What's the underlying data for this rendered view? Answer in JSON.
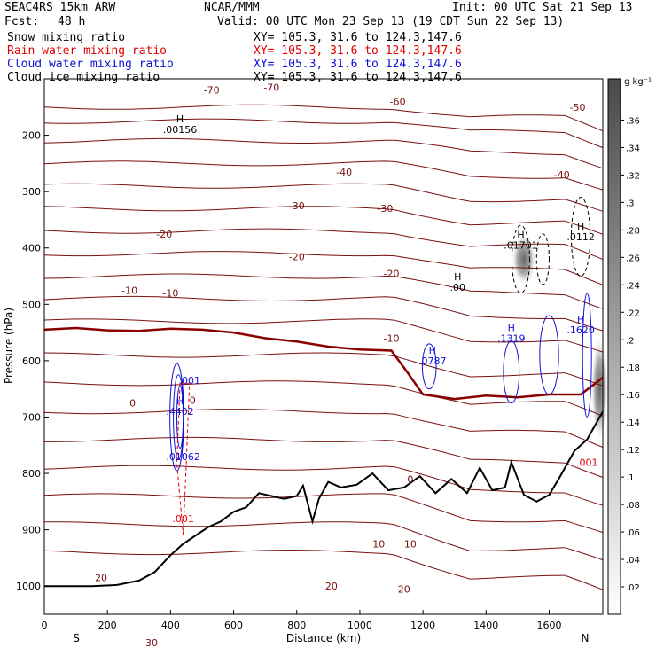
{
  "header": {
    "model": "SEAC4RS 15km ARW",
    "org": "NCAR/MMM",
    "init": "Init: 00 UTC Sat 21 Sep 13",
    "fcst_label": "Fcst:",
    "fcst_value": "48 h",
    "valid": "Valid: 00 UTC Mon 23 Sep 13 (19 CDT Sun 22 Sep 13)"
  },
  "fields": [
    {
      "name": "Snow mixing ratio",
      "xy": "XY= 105.3, 31.6 to 124.3,147.6",
      "color": "#000000"
    },
    {
      "name": "Rain water mixing ratio",
      "xy": "XY= 105.3, 31.6 to 124.3,147.6",
      "color": "#e00000"
    },
    {
      "name": "Cloud water mixing ratio",
      "xy": "XY= 105.3, 31.6 to 124.3,147.6",
      "color": "#1010d8"
    },
    {
      "name": "Cloud ice mixing ratio",
      "xy": "XY= 105.3, 31.6 to 124.3,147.6",
      "color": "#000000"
    }
  ],
  "chart_data": {
    "type": "contour",
    "xlabel": "Distance (km)",
    "ylabel": "Pressure (hPa)",
    "xlim": [
      0,
      1770
    ],
    "ylim": [
      1050,
      100
    ],
    "x_ticks": [
      0,
      200,
      400,
      600,
      800,
      1000,
      1200,
      1400,
      1600
    ],
    "y_ticks": [
      200,
      300,
      400,
      500,
      600,
      700,
      800,
      900,
      1000
    ],
    "x_end_labels": {
      "left": "S",
      "right": "N"
    },
    "colorbar": {
      "unit": "g kg⁻¹",
      "ticks": [
        ".02",
        ".04",
        ".06",
        ".08",
        ".1",
        ".12",
        ".14",
        ".16",
        ".18",
        ".2",
        ".22",
        ".24",
        ".26",
        ".28",
        ".3",
        ".32",
        ".34",
        ".36"
      ]
    },
    "temperature_contour_labels": [
      {
        "text": "-70",
        "x": 530,
        "p": 120
      },
      {
        "text": "-70",
        "x": 720,
        "p": 115
      },
      {
        "text": "-60",
        "x": 1120,
        "p": 140
      },
      {
        "text": "-50",
        "x": 1690,
        "p": 150
      },
      {
        "text": "-40",
        "x": 950,
        "p": 265
      },
      {
        "text": "-40",
        "x": 1640,
        "p": 270
      },
      {
        "text": "-30",
        "x": 800,
        "p": 325
      },
      {
        "text": "-30",
        "x": 1080,
        "p": 330
      },
      {
        "text": "-20",
        "x": 380,
        "p": 375
      },
      {
        "text": "-20",
        "x": 800,
        "p": 415
      },
      {
        "text": "-20",
        "x": 1100,
        "p": 445
      },
      {
        "text": "-10",
        "x": 270,
        "p": 475
      },
      {
        "text": "-10",
        "x": 400,
        "p": 480
      },
      {
        "text": "-10",
        "x": 1100,
        "p": 560
      },
      {
        "text": "0",
        "x": 280,
        "p": 675
      },
      {
        "text": "0",
        "x": 470,
        "p": 670
      },
      {
        "text": "0",
        "x": 1160,
        "p": 810
      },
      {
        "text": "10",
        "x": 1060,
        "p": 925
      },
      {
        "text": "10",
        "x": 1160,
        "p": 925
      },
      {
        "text": "20",
        "x": 180,
        "p": 985
      },
      {
        "text": "20",
        "x": 910,
        "p": 1000
      },
      {
        "text": "20",
        "x": 1140,
        "p": 1005
      },
      {
        "text": "30",
        "x": 340,
        "p": 1100
      }
    ],
    "maxima_labels": [
      {
        "text": "H",
        "value": ".00156",
        "x": 430,
        "p": 190,
        "color": "#000000"
      },
      {
        "text": "H",
        "value": ".01701",
        "x": 1510,
        "p": 395,
        "color": "#000000"
      },
      {
        "text": "H",
        "value": ".0112",
        "x": 1700,
        "p": 380,
        "color": "#000000"
      },
      {
        "text": "H",
        "value": ".00",
        "x": 1310,
        "p": 470,
        "color": "#000000"
      },
      {
        "text": "H",
        "value": ".0787",
        "x": 1230,
        "p": 600,
        "color": "#1010d8"
      },
      {
        "text": "H",
        "value": ".1319",
        "x": 1480,
        "p": 560,
        "color": "#1010d8"
      },
      {
        "text": "H",
        "value": ".1620",
        "x": 1700,
        "p": 545,
        "color": "#1010d8"
      },
      {
        "text": "H",
        "value": ".4402",
        "x": 430,
        "p": 690,
        "color": "#1010d8"
      },
      {
        "text": "",
        "value": ".001",
        "x": 460,
        "p": 635,
        "color": "#1010d8"
      },
      {
        "text": "",
        "value": ".01062",
        "x": 440,
        "p": 770,
        "color": "#1010d8"
      },
      {
        "text": "",
        "value": ".001",
        "x": 440,
        "p": 880,
        "color": "#e00000"
      },
      {
        "text": "",
        "value": ".001",
        "x": 1720,
        "p": 780,
        "color": "#e00000"
      }
    ],
    "terrain": [
      [
        0,
        1000
      ],
      [
        150,
        1000
      ],
      [
        230,
        998
      ],
      [
        300,
        990
      ],
      [
        350,
        975
      ],
      [
        400,
        945
      ],
      [
        440,
        925
      ],
      [
        480,
        910
      ],
      [
        520,
        895
      ],
      [
        560,
        885
      ],
      [
        600,
        868
      ],
      [
        640,
        860
      ],
      [
        680,
        835
      ],
      [
        720,
        840
      ],
      [
        760,
        845
      ],
      [
        800,
        840
      ],
      [
        820,
        822
      ],
      [
        850,
        885
      ],
      [
        870,
        845
      ],
      [
        900,
        815
      ],
      [
        940,
        825
      ],
      [
        990,
        820
      ],
      [
        1040,
        800
      ],
      [
        1090,
        830
      ],
      [
        1140,
        825
      ],
      [
        1190,
        805
      ],
      [
        1240,
        835
      ],
      [
        1290,
        810
      ],
      [
        1340,
        835
      ],
      [
        1380,
        790
      ],
      [
        1420,
        830
      ],
      [
        1460,
        825
      ],
      [
        1480,
        780
      ],
      [
        1520,
        838
      ],
      [
        1560,
        850
      ],
      [
        1600,
        838
      ],
      [
        1630,
        810
      ],
      [
        1650,
        790
      ],
      [
        1680,
        760
      ],
      [
        1720,
        740
      ],
      [
        1770,
        690
      ]
    ],
    "freezing_level": [
      [
        0,
        545
      ],
      [
        100,
        542
      ],
      [
        200,
        546
      ],
      [
        300,
        547
      ],
      [
        400,
        543
      ],
      [
        500,
        545
      ],
      [
        600,
        550
      ],
      [
        700,
        560
      ],
      [
        800,
        566
      ],
      [
        900,
        575
      ],
      [
        1000,
        580
      ],
      [
        1100,
        582
      ],
      [
        1150,
        620
      ],
      [
        1200,
        660
      ],
      [
        1300,
        668
      ],
      [
        1400,
        662
      ],
      [
        1500,
        665
      ],
      [
        1600,
        660
      ],
      [
        1700,
        660
      ],
      [
        1770,
        630
      ]
    ]
  }
}
